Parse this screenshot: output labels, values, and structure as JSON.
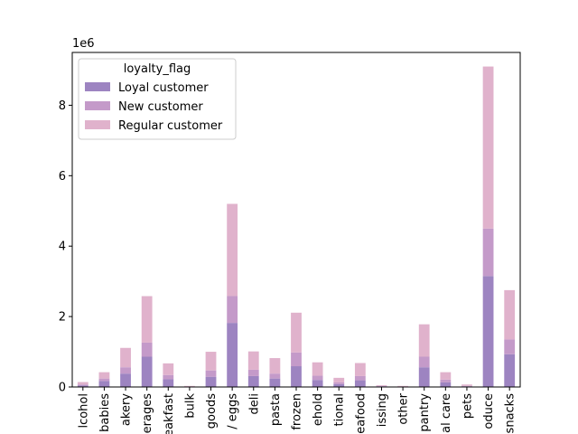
{
  "chart_data": {
    "type": "bar",
    "stacked": true,
    "scale_label": "1e6",
    "categories": [
      "alcohol",
      "babies",
      "bakery",
      "beverages",
      "breakfast",
      "bulk",
      "canned goods",
      "dairy eggs",
      "deli",
      "dry goods pasta",
      "frozen",
      "household",
      "international",
      "meat seafood",
      "missing",
      "other",
      "pantry",
      "personal care",
      "pets",
      "produce",
      "snacks"
    ],
    "tick_labels": [
      "lcohol",
      "babies",
      "akery",
      "erages",
      "eakfast",
      "bulk",
      "goods",
      "/ eggs",
      "deli",
      "pasta",
      "frozen",
      "ehold",
      "tional",
      "eafood",
      "issing",
      "other",
      "pantry",
      "al care",
      "pets",
      "oduce",
      "snacks"
    ],
    "series": [
      {
        "name": "Loyal customer",
        "color": "#9d84c1",
        "values": [
          0.04,
          0.17,
          0.38,
          0.86,
          0.22,
          0.01,
          0.29,
          1.82,
          0.31,
          0.24,
          0.59,
          0.2,
          0.08,
          0.19,
          0.02,
          0.01,
          0.56,
          0.13,
          0.02,
          3.15,
          0.93
        ]
      },
      {
        "name": "New customer",
        "color": "#c49ac9",
        "values": [
          0.03,
          0.07,
          0.18,
          0.4,
          0.12,
          0.005,
          0.18,
          0.76,
          0.18,
          0.14,
          0.39,
          0.12,
          0.05,
          0.12,
          0.01,
          0.005,
          0.3,
          0.08,
          0.01,
          1.35,
          0.42
        ]
      },
      {
        "name": "Regular customer",
        "color": "#e0b2cc",
        "values": [
          0.07,
          0.18,
          0.55,
          1.32,
          0.33,
          0.015,
          0.53,
          2.62,
          0.52,
          0.44,
          1.13,
          0.38,
          0.13,
          0.37,
          0.02,
          0.015,
          0.92,
          0.21,
          0.04,
          4.6,
          1.4
        ]
      }
    ],
    "ylim": [
      0,
      9.5
    ],
    "yticks": [
      0,
      2,
      4,
      6,
      8
    ],
    "legend": {
      "title": "loyalty_flag",
      "placement": "upper-left"
    },
    "grid": false
  }
}
